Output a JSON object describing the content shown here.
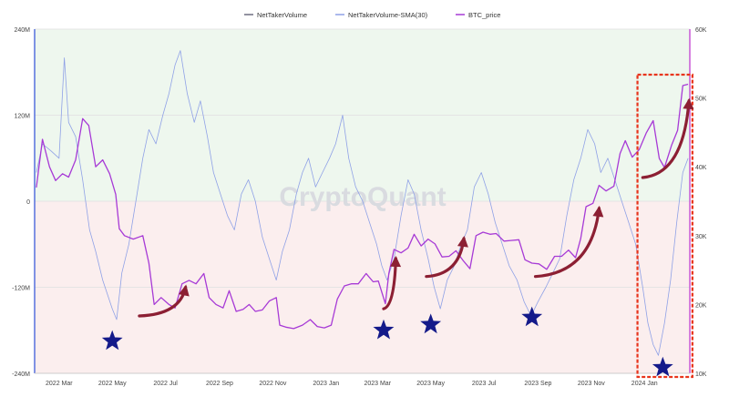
{
  "colors": {
    "net_taker": "#6e6e80",
    "sma": "#8fa1e6",
    "btc": "#a73ad6",
    "positive_zone": "#eef7ee",
    "negative_zone": "#fbeeee",
    "left_axis": "#3d5bd9",
    "right_axis": "#c13fd1",
    "arrow": "#8c1f33",
    "star": "#141a8a",
    "highlight_box": "#e8341c",
    "watermark": "#d9dbe0",
    "tick_text": "#444444"
  },
  "watermark": "CryptoQuant",
  "chart_data": {
    "type": "line",
    "legend": [
      "NetTakerVolume",
      "NetTakerVolume-SMA(30)",
      "BTC_price"
    ],
    "legend_placement": "top-center",
    "x_ticks": [
      "2022 Mar",
      "2022 May",
      "2022 Jul",
      "2022 Sep",
      "2022 Nov",
      "2023 Jan",
      "2023 Mar",
      "2023 May",
      "2023 Jul",
      "2023 Sep",
      "2023 Nov",
      "2024 Jan"
    ],
    "y_left_ticks": [
      "240M",
      "120M",
      "0",
      "-120M",
      "-240M"
    ],
    "y_left_range_millions": [
      -240,
      240
    ],
    "y_right_ticks": [
      "60K",
      "50K",
      "40K",
      "30K",
      "20K",
      "10K"
    ],
    "y_right_range_thousands": [
      10,
      60
    ],
    "x_range": [
      "2022-02-01",
      "2024-02-22"
    ],
    "grid": "horizontal",
    "zones": [
      {
        "name": "positive",
        "from": 0,
        "to": 240
      },
      {
        "name": "negative",
        "from": -240,
        "to": 0
      }
    ],
    "series": [
      {
        "name": "NetTakerVolume-SMA(30)",
        "axis": "left",
        "points": [
          [
            "2022-02-03",
            40
          ],
          [
            "2022-02-10",
            80
          ],
          [
            "2022-02-20",
            70
          ],
          [
            "2022-03-01",
            60
          ],
          [
            "2022-03-07",
            200
          ],
          [
            "2022-03-12",
            110
          ],
          [
            "2022-03-20",
            90
          ],
          [
            "2022-03-28",
            30
          ],
          [
            "2022-04-05",
            -40
          ],
          [
            "2022-04-12",
            -70
          ],
          [
            "2022-04-20",
            -110
          ],
          [
            "2022-05-01",
            -150
          ],
          [
            "2022-05-06",
            -165
          ],
          [
            "2022-05-12",
            -100
          ],
          [
            "2022-05-20",
            -60
          ],
          [
            "2022-05-28",
            0
          ],
          [
            "2022-06-05",
            60
          ],
          [
            "2022-06-12",
            100
          ],
          [
            "2022-06-20",
            80
          ],
          [
            "2022-06-28",
            120
          ],
          [
            "2022-07-05",
            150
          ],
          [
            "2022-07-12",
            190
          ],
          [
            "2022-07-18",
            210
          ],
          [
            "2022-07-26",
            150
          ],
          [
            "2022-08-03",
            110
          ],
          [
            "2022-08-10",
            140
          ],
          [
            "2022-08-18",
            90
          ],
          [
            "2022-08-25",
            40
          ],
          [
            "2022-09-02",
            10
          ],
          [
            "2022-09-10",
            -20
          ],
          [
            "2022-09-18",
            -40
          ],
          [
            "2022-09-26",
            10
          ],
          [
            "2022-10-04",
            30
          ],
          [
            "2022-10-12",
            0
          ],
          [
            "2022-10-20",
            -50
          ],
          [
            "2022-10-28",
            -80
          ],
          [
            "2022-11-05",
            -110
          ],
          [
            "2022-11-12",
            -70
          ],
          [
            "2022-11-20",
            -40
          ],
          [
            "2022-11-28",
            10
          ],
          [
            "2022-12-05",
            40
          ],
          [
            "2022-12-12",
            60
          ],
          [
            "2022-12-20",
            20
          ],
          [
            "2022-12-28",
            40
          ],
          [
            "2023-01-05",
            60
          ],
          [
            "2023-01-12",
            80
          ],
          [
            "2023-01-20",
            120
          ],
          [
            "2023-01-27",
            60
          ],
          [
            "2023-02-04",
            20
          ],
          [
            "2023-02-12",
            0
          ],
          [
            "2023-02-20",
            -30
          ],
          [
            "2023-02-28",
            -60
          ],
          [
            "2023-03-06",
            -90
          ],
          [
            "2023-03-12",
            -110
          ],
          [
            "2023-03-20",
            -80
          ],
          [
            "2023-03-28",
            -20
          ],
          [
            "2023-04-05",
            30
          ],
          [
            "2023-04-12",
            10
          ],
          [
            "2023-04-20",
            -40
          ],
          [
            "2023-04-28",
            -80
          ],
          [
            "2023-05-05",
            -120
          ],
          [
            "2023-05-12",
            -150
          ],
          [
            "2023-05-20",
            -110
          ],
          [
            "2023-05-28",
            -90
          ],
          [
            "2023-06-05",
            -60
          ],
          [
            "2023-06-12",
            -40
          ],
          [
            "2023-06-20",
            20
          ],
          [
            "2023-06-28",
            40
          ],
          [
            "2023-07-06",
            10
          ],
          [
            "2023-07-14",
            -30
          ],
          [
            "2023-07-22",
            -60
          ],
          [
            "2023-07-30",
            -90
          ],
          [
            "2023-08-08",
            -110
          ],
          [
            "2023-08-16",
            -140
          ],
          [
            "2023-08-24",
            -160
          ],
          [
            "2023-09-01",
            -140
          ],
          [
            "2023-09-10",
            -120
          ],
          [
            "2023-09-18",
            -100
          ],
          [
            "2023-09-26",
            -80
          ],
          [
            "2023-10-04",
            -20
          ],
          [
            "2023-10-12",
            30
          ],
          [
            "2023-10-20",
            60
          ],
          [
            "2023-10-28",
            100
          ],
          [
            "2023-11-05",
            80
          ],
          [
            "2023-11-12",
            40
          ],
          [
            "2023-11-20",
            60
          ],
          [
            "2023-11-28",
            30
          ],
          [
            "2023-12-06",
            0
          ],
          [
            "2023-12-14",
            -30
          ],
          [
            "2023-12-22",
            -60
          ],
          [
            "2023-12-30",
            -120
          ],
          [
            "2024-01-05",
            -170
          ],
          [
            "2024-01-11",
            -200
          ],
          [
            "2024-01-17",
            -215
          ],
          [
            "2024-01-24",
            -170
          ],
          [
            "2024-01-31",
            -110
          ],
          [
            "2024-02-07",
            -30
          ],
          [
            "2024-02-14",
            40
          ],
          [
            "2024-02-20",
            60
          ]
        ]
      },
      {
        "name": "BTC_price",
        "axis": "right",
        "points": [
          [
            "2022-02-03",
            37
          ],
          [
            "2022-02-10",
            44
          ],
          [
            "2022-02-18",
            40
          ],
          [
            "2022-02-25",
            38
          ],
          [
            "2022-03-05",
            39
          ],
          [
            "2022-03-12",
            38.5
          ],
          [
            "2022-03-20",
            41
          ],
          [
            "2022-03-28",
            47
          ],
          [
            "2022-04-04",
            46
          ],
          [
            "2022-04-12",
            40
          ],
          [
            "2022-04-20",
            41
          ],
          [
            "2022-04-28",
            39
          ],
          [
            "2022-05-05",
            36
          ],
          [
            "2022-05-09",
            31
          ],
          [
            "2022-05-15",
            30
          ],
          [
            "2022-05-25",
            29.5
          ],
          [
            "2022-06-05",
            30
          ],
          [
            "2022-06-12",
            26
          ],
          [
            "2022-06-18",
            20
          ],
          [
            "2022-06-26",
            21
          ],
          [
            "2022-07-05",
            20
          ],
          [
            "2022-07-12",
            19.5
          ],
          [
            "2022-07-20",
            23
          ],
          [
            "2022-07-28",
            23.5
          ],
          [
            "2022-08-05",
            23
          ],
          [
            "2022-08-14",
            24.5
          ],
          [
            "2022-08-20",
            21
          ],
          [
            "2022-08-28",
            20
          ],
          [
            "2022-09-05",
            19.5
          ],
          [
            "2022-09-12",
            22
          ],
          [
            "2022-09-20",
            19
          ],
          [
            "2022-09-28",
            19.3
          ],
          [
            "2022-10-05",
            20
          ],
          [
            "2022-10-12",
            19
          ],
          [
            "2022-10-20",
            19.2
          ],
          [
            "2022-10-28",
            20.5
          ],
          [
            "2022-11-05",
            21
          ],
          [
            "2022-11-09",
            17
          ],
          [
            "2022-11-16",
            16.7
          ],
          [
            "2022-11-25",
            16.5
          ],
          [
            "2022-12-05",
            17
          ],
          [
            "2022-12-14",
            17.8
          ],
          [
            "2022-12-22",
            16.8
          ],
          [
            "2022-12-30",
            16.6
          ],
          [
            "2023-01-07",
            17
          ],
          [
            "2023-01-14",
            20.8
          ],
          [
            "2023-01-22",
            22.7
          ],
          [
            "2023-01-30",
            23
          ],
          [
            "2023-02-07",
            23
          ],
          [
            "2023-02-16",
            24.5
          ],
          [
            "2023-02-24",
            23.3
          ],
          [
            "2023-03-02",
            23.4
          ],
          [
            "2023-03-10",
            20.1
          ],
          [
            "2023-03-14",
            24.5
          ],
          [
            "2023-03-20",
            28
          ],
          [
            "2023-03-28",
            27.5
          ],
          [
            "2023-04-05",
            28.2
          ],
          [
            "2023-04-12",
            30.2
          ],
          [
            "2023-04-20",
            28.5
          ],
          [
            "2023-04-28",
            29.5
          ],
          [
            "2023-05-06",
            28.8
          ],
          [
            "2023-05-14",
            26.9
          ],
          [
            "2023-05-22",
            27
          ],
          [
            "2023-05-30",
            27.8
          ],
          [
            "2023-06-07",
            26.4
          ],
          [
            "2023-06-15",
            25.2
          ],
          [
            "2023-06-22",
            30
          ],
          [
            "2023-06-30",
            30.5
          ],
          [
            "2023-07-08",
            30.2
          ],
          [
            "2023-07-15",
            30.3
          ],
          [
            "2023-07-24",
            29.2
          ],
          [
            "2023-08-01",
            29.3
          ],
          [
            "2023-08-10",
            29.4
          ],
          [
            "2023-08-17",
            26.5
          ],
          [
            "2023-08-25",
            26
          ],
          [
            "2023-09-02",
            25.9
          ],
          [
            "2023-09-11",
            25.1
          ],
          [
            "2023-09-20",
            27
          ],
          [
            "2023-09-28",
            27
          ],
          [
            "2023-10-06",
            27.9
          ],
          [
            "2023-10-14",
            26.8
          ],
          [
            "2023-10-20",
            29.6
          ],
          [
            "2023-10-26",
            34.2
          ],
          [
            "2023-11-03",
            34.7
          ],
          [
            "2023-11-10",
            37.3
          ],
          [
            "2023-11-18",
            36.5
          ],
          [
            "2023-11-27",
            37.2
          ],
          [
            "2023-12-04",
            41.9
          ],
          [
            "2023-12-10",
            43.8
          ],
          [
            "2023-12-18",
            41.4
          ],
          [
            "2023-12-26",
            42.5
          ],
          [
            "2024-01-03",
            44.9
          ],
          [
            "2024-01-11",
            46.7
          ],
          [
            "2024-01-18",
            41.2
          ],
          [
            "2024-01-24",
            39.9
          ],
          [
            "2024-02-01",
            43.1
          ],
          [
            "2024-02-08",
            45.3
          ],
          [
            "2024-02-14",
            51.8
          ],
          [
            "2024-02-20",
            52
          ]
        ]
      }
    ],
    "annotations": {
      "stars": [
        {
          "x": "2022-05-01",
          "y": -195
        },
        {
          "x": "2023-03-08",
          "y": -180
        },
        {
          "x": "2023-05-01",
          "y": -172
        },
        {
          "x": "2023-08-25",
          "y": -162
        },
        {
          "x": "2024-01-22",
          "y": -232
        }
      ],
      "arrows": [
        {
          "from": [
            "2022-06-01",
            -160
          ],
          "to": [
            "2022-07-24",
            -120
          ]
        },
        {
          "from": [
            "2023-03-08",
            -150
          ],
          "to": [
            "2023-03-22",
            -80
          ]
        },
        {
          "from": [
            "2023-04-26",
            -105
          ],
          "to": [
            "2023-06-08",
            -52
          ]
        },
        {
          "from": [
            "2023-08-29",
            -105
          ],
          "to": [
            "2023-11-10",
            -10
          ]
        },
        {
          "from": [
            "2023-12-30",
            33
          ],
          "to": [
            "2024-02-21",
            140
          ]
        }
      ],
      "highlight_range": [
        "2023-12-24",
        "2024-02-25"
      ]
    }
  }
}
